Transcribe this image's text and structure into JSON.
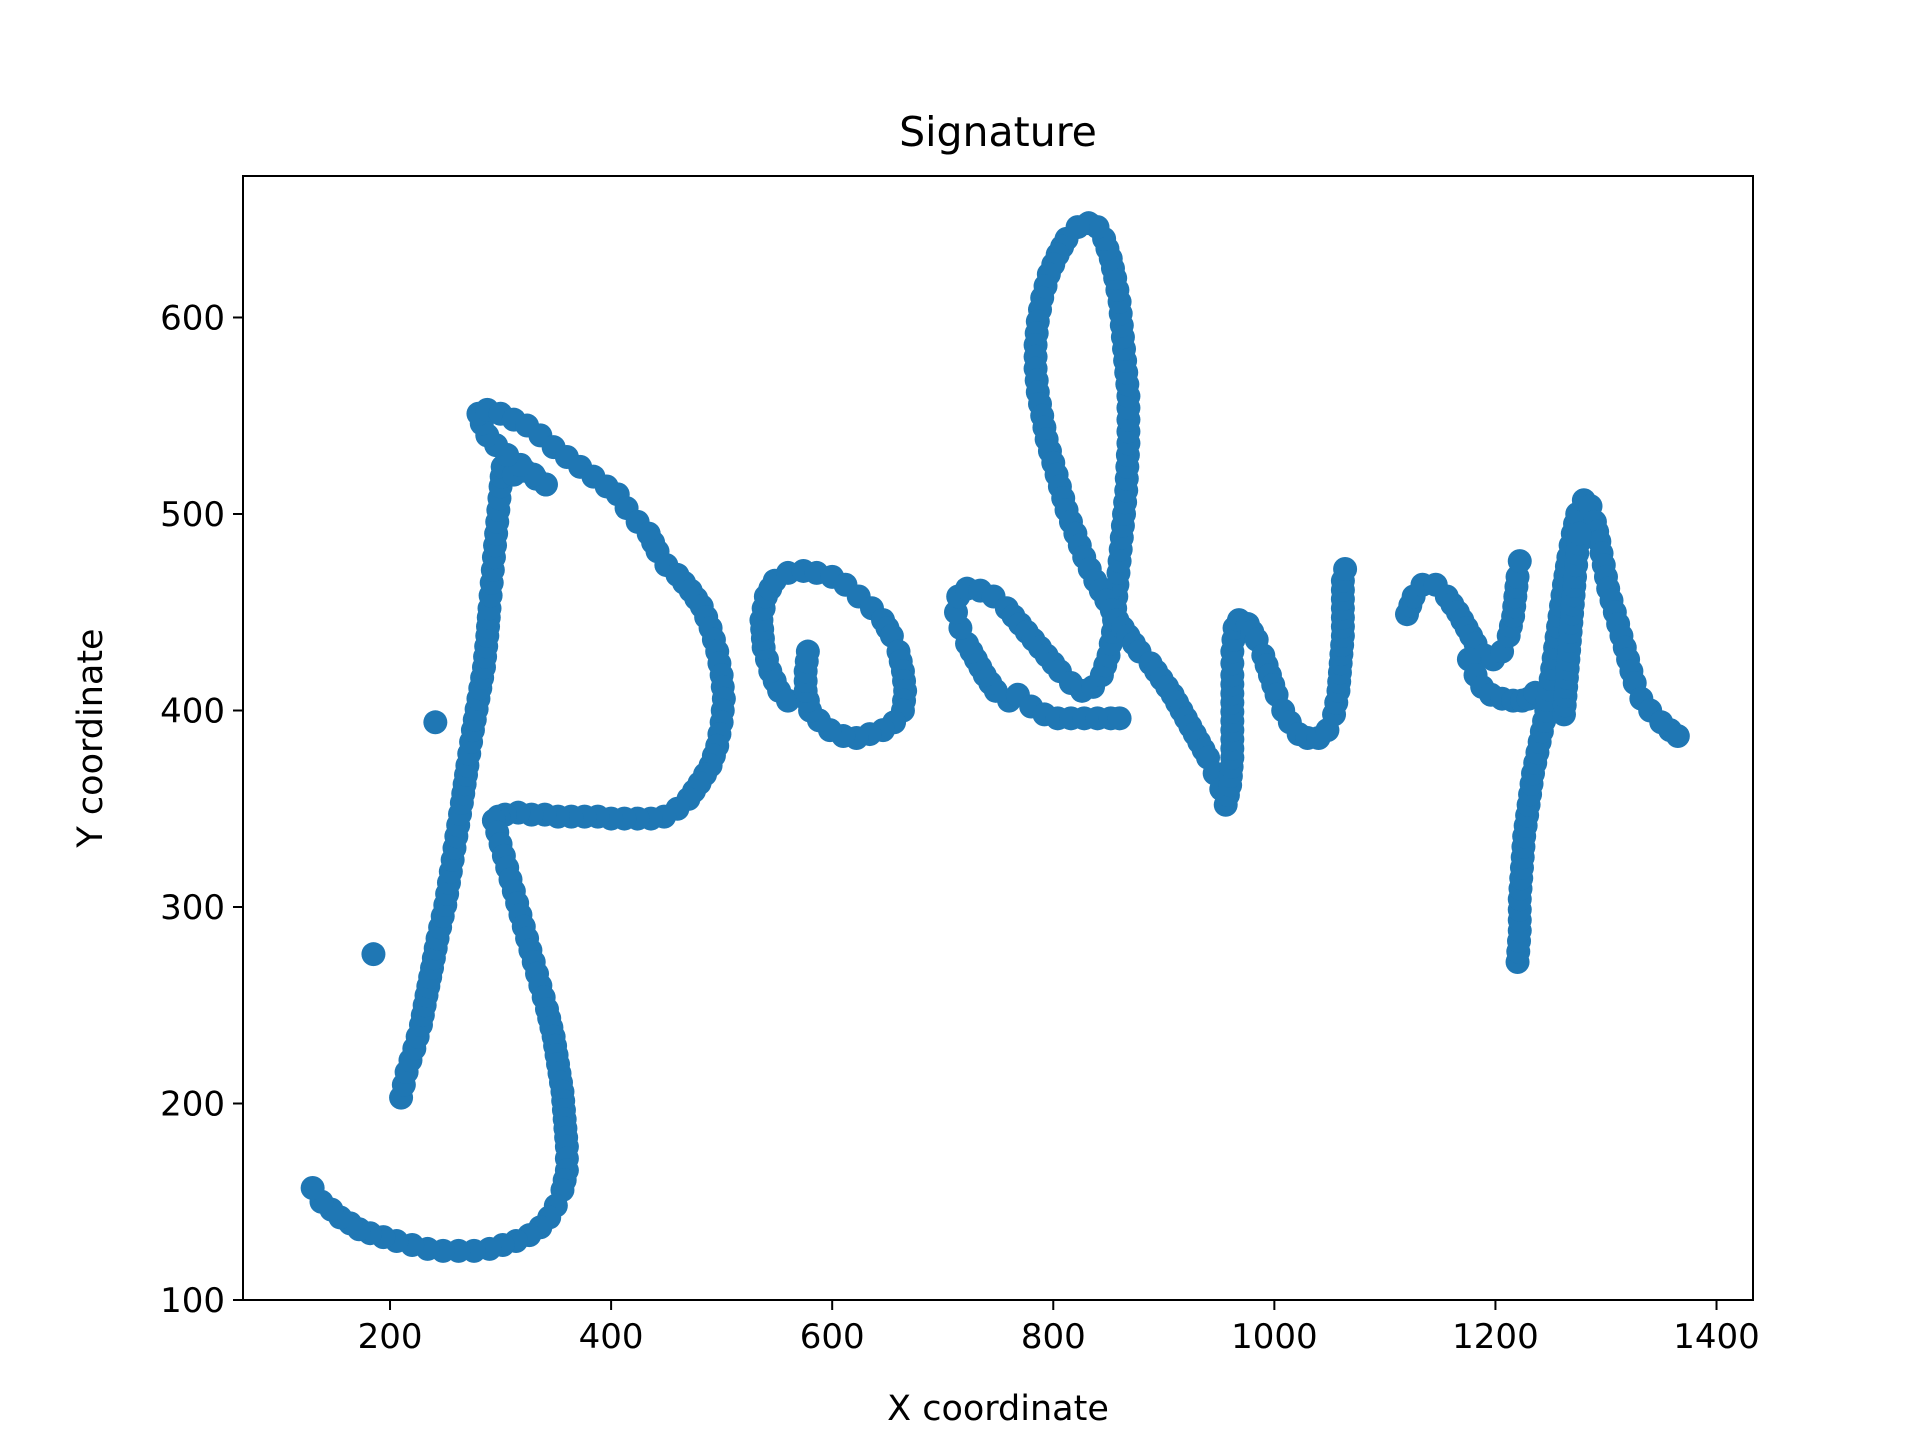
{
  "chart_data": {
    "type": "scatter",
    "title": "Signature",
    "xlabel": "X coordinate",
    "ylabel": "Y coordinate",
    "xlim": [
      67,
      1433
    ],
    "ylim": [
      100,
      672
    ],
    "xticks": [
      200,
      400,
      600,
      800,
      1000,
      1200,
      1400
    ],
    "yticks": [
      100,
      200,
      300,
      400,
      500,
      600
    ],
    "grid": false,
    "legend": "none",
    "marker_color": "#1f77b4",
    "strokes": [
      {
        "points": [
          [
            210,
            203
          ],
          [
            215,
            216
          ],
          [
            222,
            228
          ],
          [
            228,
            240
          ],
          [
            233,
            255
          ],
          [
            238,
            269
          ],
          [
            243,
            284
          ],
          [
            250,
            301
          ],
          [
            255,
            318
          ],
          [
            260,
            336
          ],
          [
            265,
            353
          ],
          [
            270,
            372
          ],
          [
            275,
            390
          ],
          [
            280,
            406
          ],
          [
            285,
            422
          ],
          [
            288,
            438
          ],
          [
            290,
            452
          ],
          [
            292,
            465
          ],
          [
            294,
            478
          ],
          [
            296,
            490
          ],
          [
            298,
            502
          ],
          [
            300,
            514
          ],
          [
            302,
            524
          ]
        ]
      },
      {
        "points": [
          [
            302,
            524
          ],
          [
            312,
            520
          ],
          [
            322,
            522
          ],
          [
            332,
            518
          ],
          [
            341,
            515
          ]
        ]
      },
      {
        "points": [
          [
            341,
            515
          ],
          [
            330,
            520
          ],
          [
            318,
            525
          ],
          [
            306,
            530
          ],
          [
            296,
            535
          ],
          [
            288,
            540
          ],
          [
            283,
            546
          ],
          [
            280,
            551
          ],
          [
            288,
            553
          ],
          [
            300,
            551
          ],
          [
            312,
            548
          ],
          [
            324,
            545
          ],
          [
            336,
            540
          ],
          [
            348,
            534
          ],
          [
            360,
            529
          ],
          [
            372,
            524
          ],
          [
            384,
            519
          ],
          [
            396,
            514
          ],
          [
            406,
            510
          ],
          [
            414,
            503
          ],
          [
            424,
            496
          ],
          [
            434,
            490
          ],
          [
            442,
            481
          ],
          [
            450,
            474
          ],
          [
            460,
            469
          ],
          [
            472,
            461
          ],
          [
            482,
            453
          ],
          [
            490,
            442
          ],
          [
            496,
            430
          ],
          [
            500,
            418
          ],
          [
            502,
            406
          ],
          [
            500,
            394
          ],
          [
            496,
            382
          ],
          [
            490,
            372
          ],
          [
            480,
            363
          ],
          [
            470,
            355
          ],
          [
            460,
            350
          ],
          [
            448,
            346
          ],
          [
            436,
            345
          ],
          [
            424,
            345
          ],
          [
            412,
            345
          ],
          [
            400,
            345
          ],
          [
            388,
            346
          ],
          [
            376,
            346
          ],
          [
            364,
            346
          ],
          [
            352,
            346
          ],
          [
            340,
            347
          ],
          [
            328,
            347
          ],
          [
            316,
            348
          ],
          [
            304,
            347
          ],
          [
            298,
            346
          ],
          [
            294,
            344
          ]
        ]
      },
      {
        "points": [
          [
            294,
            344
          ],
          [
            300,
            332
          ],
          [
            306,
            320
          ],
          [
            312,
            308
          ],
          [
            318,
            296
          ],
          [
            324,
            284
          ],
          [
            330,
            272
          ],
          [
            336,
            260
          ],
          [
            342,
            248
          ],
          [
            348,
            234
          ],
          [
            352,
            220
          ],
          [
            356,
            206
          ],
          [
            358,
            192
          ],
          [
            360,
            178
          ],
          [
            360,
            166
          ],
          [
            356,
            156
          ],
          [
            350,
            148
          ],
          [
            344,
            142
          ],
          [
            336,
            137
          ],
          [
            326,
            133
          ],
          [
            314,
            130
          ],
          [
            302,
            128
          ],
          [
            290,
            126
          ],
          [
            276,
            125
          ],
          [
            262,
            125
          ],
          [
            248,
            125
          ],
          [
            234,
            126
          ],
          [
            220,
            128
          ],
          [
            206,
            130
          ],
          [
            194,
            132
          ],
          [
            182,
            134
          ],
          [
            172,
            136
          ],
          [
            164,
            139
          ],
          [
            155,
            142
          ],
          [
            147,
            146
          ],
          [
            138,
            150
          ],
          [
            130,
            157
          ]
        ]
      },
      {
        "points": [
          [
            560,
            405
          ],
          [
            552,
            410
          ],
          [
            544,
            420
          ],
          [
            538,
            432
          ],
          [
            536,
            446
          ],
          [
            540,
            458
          ],
          [
            548,
            466
          ],
          [
            560,
            470
          ],
          [
            574,
            471
          ],
          [
            586,
            470
          ],
          [
            600,
            468
          ],
          [
            612,
            464
          ],
          [
            624,
            458
          ],
          [
            636,
            452
          ],
          [
            646,
            446
          ],
          [
            654,
            438
          ],
          [
            660,
            430
          ],
          [
            664,
            420
          ],
          [
            666,
            410
          ],
          [
            664,
            400
          ],
          [
            656,
            394
          ],
          [
            646,
            390
          ],
          [
            634,
            388
          ],
          [
            622,
            386
          ],
          [
            610,
            387
          ],
          [
            598,
            390
          ],
          [
            588,
            395
          ],
          [
            580,
            400
          ],
          [
            576,
            410
          ],
          [
            576,
            420
          ],
          [
            578,
            430
          ]
        ]
      },
      {
        "points": [
          [
            760,
            405
          ],
          [
            748,
            410
          ],
          [
            738,
            418
          ],
          [
            730,
            426
          ],
          [
            722,
            434
          ],
          [
            716,
            442
          ],
          [
            712,
            450
          ],
          [
            714,
            458
          ],
          [
            722,
            462
          ],
          [
            734,
            461
          ],
          [
            746,
            458
          ],
          [
            758,
            452
          ],
          [
            770,
            444
          ],
          [
            782,
            436
          ],
          [
            794,
            428
          ],
          [
            806,
            420
          ],
          [
            816,
            414
          ],
          [
            826,
            410
          ],
          [
            836,
            412
          ],
          [
            844,
            418
          ],
          [
            850,
            428
          ],
          [
            854,
            440
          ],
          [
            856,
            452
          ],
          [
            858,
            464
          ],
          [
            860,
            476
          ],
          [
            862,
            488
          ],
          [
            864,
            500
          ],
          [
            866,
            512
          ],
          [
            867,
            524
          ],
          [
            868,
            536
          ],
          [
            868,
            548
          ],
          [
            868,
            560
          ],
          [
            866,
            572
          ],
          [
            864,
            584
          ],
          [
            862,
            596
          ],
          [
            860,
            608
          ],
          [
            856,
            620
          ],
          [
            852,
            630
          ],
          [
            846,
            640
          ],
          [
            840,
            646
          ],
          [
            832,
            648
          ],
          [
            822,
            646
          ],
          [
            812,
            640
          ],
          [
            804,
            632
          ],
          [
            796,
            622
          ],
          [
            790,
            610
          ],
          [
            786,
            598
          ],
          [
            784,
            586
          ],
          [
            784,
            574
          ],
          [
            786,
            562
          ],
          [
            790,
            550
          ],
          [
            794,
            538
          ],
          [
            800,
            526
          ],
          [
            806,
            514
          ],
          [
            812,
            502
          ],
          [
            820,
            490
          ],
          [
            828,
            478
          ],
          [
            838,
            466
          ],
          [
            848,
            456
          ],
          [
            858,
            446
          ],
          [
            868,
            438
          ],
          [
            878,
            430
          ],
          [
            888,
            424
          ],
          [
            898,
            416
          ],
          [
            908,
            408
          ],
          [
            916,
            400
          ],
          [
            924,
            392
          ],
          [
            932,
            384
          ],
          [
            940,
            376
          ],
          [
            946,
            368
          ],
          [
            952,
            360
          ],
          [
            956,
            352
          ],
          [
            960,
            362
          ],
          [
            962,
            376
          ],
          [
            962,
            390
          ],
          [
            962,
            404
          ],
          [
            962,
            418
          ],
          [
            962,
            430
          ],
          [
            964,
            442
          ],
          [
            968,
            446
          ],
          [
            976,
            444
          ],
          [
            984,
            436
          ],
          [
            990,
            428
          ],
          [
            996,
            418
          ],
          [
            1002,
            408
          ],
          [
            1008,
            400
          ],
          [
            1014,
            394
          ],
          [
            1022,
            388
          ],
          [
            1030,
            386
          ],
          [
            1040,
            386
          ],
          [
            1048,
            390
          ],
          [
            1054,
            398
          ],
          [
            1058,
            410
          ],
          [
            1060,
            424
          ],
          [
            1062,
            438
          ],
          [
            1062,
            452
          ],
          [
            1062,
            466
          ],
          [
            1064,
            472
          ]
        ]
      },
      {
        "points": [
          [
            768,
            408
          ],
          [
            780,
            402
          ],
          [
            792,
            398
          ],
          [
            804,
            396
          ],
          [
            816,
            396
          ],
          [
            828,
            396
          ],
          [
            840,
            396
          ],
          [
            852,
            396
          ],
          [
            860,
            396
          ]
        ]
      },
      {
        "points": [
          [
            1120,
            449
          ],
          [
            1126,
            458
          ],
          [
            1134,
            464
          ],
          [
            1146,
            464
          ],
          [
            1156,
            458
          ],
          [
            1166,
            450
          ],
          [
            1174,
            442
          ],
          [
            1182,
            434
          ],
          [
            1190,
            428
          ],
          [
            1198,
            426
          ],
          [
            1206,
            430
          ],
          [
            1212,
            438
          ],
          [
            1216,
            448
          ],
          [
            1218,
            458
          ],
          [
            1220,
            468
          ],
          [
            1222,
            476
          ]
        ]
      },
      {
        "points": [
          [
            1176,
            426
          ],
          [
            1182,
            418
          ],
          [
            1188,
            412
          ],
          [
            1196,
            408
          ],
          [
            1206,
            406
          ],
          [
            1216,
            405
          ],
          [
            1224,
            405
          ],
          [
            1230,
            406
          ],
          [
            1236,
            409
          ]
        ]
      },
      {
        "points": [
          [
            1220,
            272
          ],
          [
            1222,
            288
          ],
          [
            1222,
            304
          ],
          [
            1224,
            320
          ],
          [
            1226,
            336
          ],
          [
            1230,
            352
          ],
          [
            1234,
            368
          ],
          [
            1240,
            384
          ],
          [
            1246,
            400
          ],
          [
            1250,
            416
          ],
          [
            1254,
            432
          ],
          [
            1258,
            448
          ],
          [
            1262,
            464
          ],
          [
            1266,
            478
          ],
          [
            1270,
            490
          ],
          [
            1274,
            500
          ],
          [
            1280,
            507
          ],
          [
            1286,
            504
          ],
          [
            1290,
            496
          ],
          [
            1294,
            486
          ],
          [
            1298,
            474
          ],
          [
            1302,
            462
          ],
          [
            1308,
            450
          ],
          [
            1314,
            438
          ],
          [
            1320,
            426
          ],
          [
            1326,
            414
          ],
          [
            1332,
            406
          ],
          [
            1340,
            400
          ],
          [
            1350,
            394
          ],
          [
            1358,
            390
          ],
          [
            1365,
            387
          ]
        ]
      },
      {
        "points": [
          [
            1262,
            398
          ],
          [
            1264,
            412
          ],
          [
            1266,
            426
          ],
          [
            1268,
            440
          ],
          [
            1270,
            454
          ],
          [
            1272,
            468
          ],
          [
            1274,
            480
          ],
          [
            1276,
            490
          ]
        ]
      }
    ]
  }
}
